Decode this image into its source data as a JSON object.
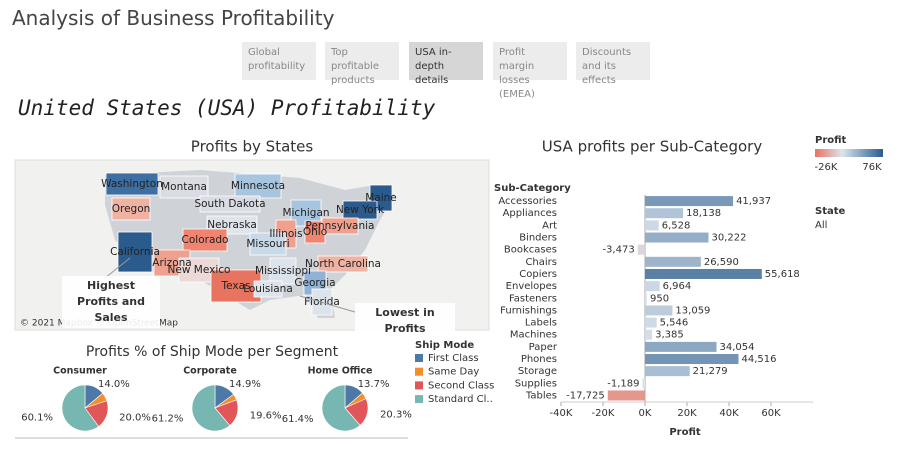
{
  "header": {
    "title": "Analysis of Business Profitability"
  },
  "tabs": [
    "Global profitability",
    "Top profitable products",
    "USA in-depth details",
    "Profit margin losses (EMEA)",
    "Discounts and its effects"
  ],
  "selected_tab": 2,
  "dashboard_title": "United States (USA) Profitability",
  "map": {
    "title": "Profits by States",
    "attribution": "© 2021 Mapbox © OpenStreetMap",
    "annotations": [
      "Highest Profits and Sales",
      "Lowest in Profits"
    ],
    "states": [
      {
        "name": "Washington",
        "color": "#3d6fa3"
      },
      {
        "name": "Montana",
        "color": "#d9dde3"
      },
      {
        "name": "Minnesota",
        "color": "#a8c5e0"
      },
      {
        "name": "Oregon",
        "color": "#f0b3a3"
      },
      {
        "name": "South Dakota",
        "color": "#d9dde3"
      },
      {
        "name": "Maine",
        "color": "#2b5b8c"
      },
      {
        "name": "New York",
        "color": "#2b5b8c"
      },
      {
        "name": "Michigan",
        "color": "#a8c5e0"
      },
      {
        "name": "Nebraska",
        "color": "#dfe4ea"
      },
      {
        "name": "Illinois",
        "color": "#f0a08e"
      },
      {
        "name": "Ohio",
        "color": "#f08470"
      },
      {
        "name": "Pennsylvania",
        "color": "#f0a08e"
      },
      {
        "name": "California",
        "color": "#2b5b8c"
      },
      {
        "name": "Colorado",
        "color": "#f08470"
      },
      {
        "name": "Missouri",
        "color": "#c9d9e8"
      },
      {
        "name": "Arizona",
        "color": "#f0a08e"
      },
      {
        "name": "New Mexico",
        "color": "#ead9d6"
      },
      {
        "name": "Texas",
        "color": "#e8735f"
      },
      {
        "name": "Mississippi",
        "color": "#dde3ea"
      },
      {
        "name": "Louisiana",
        "color": "#dde3ea"
      },
      {
        "name": "North Carolina",
        "color": "#f0b3a3"
      },
      {
        "name": "Georgia",
        "color": "#8fb2d6"
      },
      {
        "name": "Florida",
        "color": "#dde3ea"
      }
    ]
  },
  "chart_data": [
    {
      "type": "hbar",
      "title": "USA profits per Sub-Category",
      "category_label": "Sub-Category",
      "x_label": "Profit",
      "categories": [
        "Accessories",
        "Appliances",
        "Art",
        "Binders",
        "Bookcases",
        "Chairs",
        "Copiers",
        "Envelopes",
        "Fasteners",
        "Furnishings",
        "Labels",
        "Machines",
        "Paper",
        "Phones",
        "Storage",
        "Supplies",
        "Tables"
      ],
      "values": [
        41937,
        18138,
        6528,
        30222,
        -3473,
        26590,
        55618,
        6964,
        950,
        13059,
        5546,
        3385,
        34054,
        44516,
        21279,
        -1189,
        -17725
      ],
      "value_labels": [
        "41,937",
        "18,138",
        "6,528",
        "30,222",
        "-3,473",
        "26,590",
        "55,618",
        "6,964",
        "950",
        "13,059",
        "5,546",
        "3,385",
        "34,054",
        "44,516",
        "21,279",
        "-1,189",
        "-17,725"
      ],
      "xlim": [
        -40000,
        80000
      ],
      "xticks": [
        {
          "value": -40000,
          "label": "-40K"
        },
        {
          "value": -20000,
          "label": "-20K"
        },
        {
          "value": 0,
          "label": "0K"
        },
        {
          "value": 20000,
          "label": "20K"
        },
        {
          "value": 40000,
          "label": "40K"
        },
        {
          "value": 60000,
          "label": "60K"
        }
      ],
      "color_legend": {
        "title": "Profit",
        "low": {
          "value": -26000,
          "label": "-26K",
          "color": "#e8735f"
        },
        "mid_color": "#dbe4ee",
        "high": {
          "value": 76000,
          "label": "76K",
          "color": "#2b5b8c"
        }
      },
      "filter": {
        "title": "State",
        "value": "All"
      }
    },
    {
      "type": "pie",
      "title": "Profits % of Ship Mode per Segment",
      "legend_title": "Ship Mode",
      "slices": [
        "First Class",
        "Same Day",
        "Second Class",
        "Standard Cl.."
      ],
      "colors": [
        "#4e79a7",
        "#f28e2b",
        "#e15759",
        "#76b7b2"
      ],
      "series": [
        {
          "name": "Consumer",
          "values": [
            14.0,
            5.9,
            20.0,
            60.1
          ],
          "value_labels": [
            "14.0%",
            null,
            "20.0%",
            "60.1%"
          ]
        },
        {
          "name": "Corporate",
          "values": [
            14.9,
            4.3,
            19.6,
            61.2
          ],
          "value_labels": [
            "14.9%",
            null,
            "19.6%",
            "61.2%"
          ]
        },
        {
          "name": "Home Office",
          "values": [
            13.7,
            4.6,
            20.3,
            61.4
          ],
          "value_labels": [
            "13.7%",
            null,
            "20.3%",
            "61.4%"
          ]
        }
      ]
    }
  ]
}
